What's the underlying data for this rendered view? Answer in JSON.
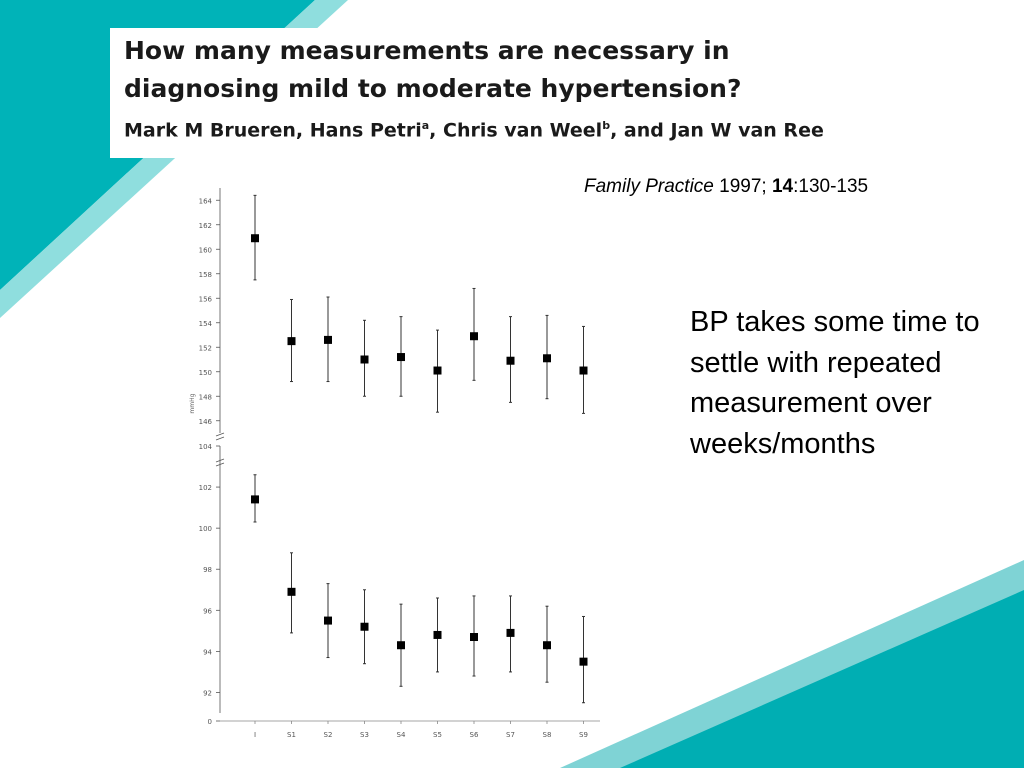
{
  "slide": {
    "title_line1": "How many measurements are necessary in",
    "title_line2": "diagnosing mild to moderate hypertension?",
    "authors": [
      {
        "name": "Mark M Brueren",
        "sup": ""
      },
      {
        "name": "Hans Petri",
        "sup": "a"
      },
      {
        "name": "Chris van Weel",
        "sup": "b"
      },
      {
        "name": "Jan W van Ree",
        "sup": ""
      }
    ],
    "author_separators": [
      ", ",
      ", ",
      ", and "
    ],
    "citation": {
      "journal": "Family Practice",
      "year": "1997;",
      "volume": "14",
      "pages": ":130-135"
    },
    "body_text": "BP takes some time to settle with repeated measurement over weeks/months",
    "colors": {
      "teal": "#00b3b8",
      "teal_light": "#6fd4d6"
    }
  },
  "chart_data": [
    {
      "type": "scatter",
      "subtype": "mean with error bars",
      "title": "",
      "xlabel": "",
      "ylabel": "mmHg",
      "categories": [
        "I",
        "S1",
        "S2",
        "S3",
        "S4",
        "S5",
        "S6",
        "S7",
        "S8",
        "S9"
      ],
      "ylim": [
        145,
        165
      ],
      "yticks": [
        "146",
        "148",
        "150",
        "152",
        "154",
        "156",
        "158",
        "160",
        "162",
        "164"
      ],
      "series": [
        {
          "values": [
            160.9,
            152.5,
            152.6,
            151.0,
            151.2,
            150.1,
            152.9,
            150.9,
            151.1,
            150.1
          ],
          "lower": [
            157.5,
            149.2,
            149.2,
            148.0,
            148.0,
            146.7,
            149.3,
            147.5,
            147.8,
            146.6
          ],
          "upper": [
            164.4,
            155.9,
            156.1,
            154.2,
            154.5,
            153.4,
            156.8,
            154.5,
            154.6,
            153.7
          ]
        }
      ],
      "grid": false,
      "legend": "none"
    },
    {
      "type": "scatter",
      "subtype": "mean with error bars",
      "title": "",
      "xlabel": "",
      "ylabel": "",
      "categories": [
        "I",
        "S1",
        "S2",
        "S3",
        "S4",
        "S5",
        "S6",
        "S7",
        "S8",
        "S9"
      ],
      "ylim": [
        91,
        104
      ],
      "yticks": [
        "92",
        "94",
        "96",
        "98",
        "100",
        "102",
        "104"
      ],
      "axis_break_labels": [
        "0"
      ],
      "series": [
        {
          "values": [
            101.4,
            96.9,
            95.5,
            95.2,
            94.3,
            94.8,
            94.7,
            94.9,
            94.3,
            93.5
          ],
          "lower": [
            100.3,
            94.9,
            93.7,
            93.4,
            92.3,
            93.0,
            92.8,
            93.0,
            92.5,
            91.5
          ],
          "upper": [
            102.6,
            98.8,
            97.3,
            97.0,
            96.3,
            96.6,
            96.7,
            96.7,
            96.2,
            95.7
          ]
        }
      ],
      "grid": false,
      "legend": "none"
    }
  ]
}
